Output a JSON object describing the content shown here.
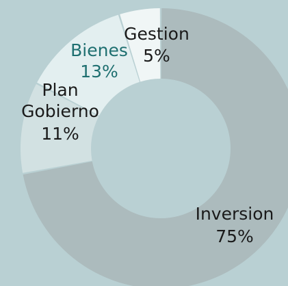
{
  "chart_data": {
    "type": "pie",
    "donut": true,
    "slices": [
      {
        "label": "Inversion",
        "value": 75,
        "pct_label": "75%",
        "color": "#acbbbd",
        "text_color": "#1a1a1a"
      },
      {
        "label": "Plan Gobierno",
        "value": 11,
        "pct_label": "11%",
        "color": "#d2e1e2",
        "text_color": "#1a1a1a"
      },
      {
        "label": "Bienes",
        "value": 13,
        "pct_label": "13%",
        "color": "#e3eff0",
        "text_color": "#1e6f70"
      },
      {
        "label": "Gestion",
        "value": 5,
        "pct_label": "5%",
        "color": "#f0f6f6",
        "text_color": "#1a1a1a"
      }
    ],
    "background": "#b9d0d3",
    "title": "",
    "legend": "none"
  }
}
